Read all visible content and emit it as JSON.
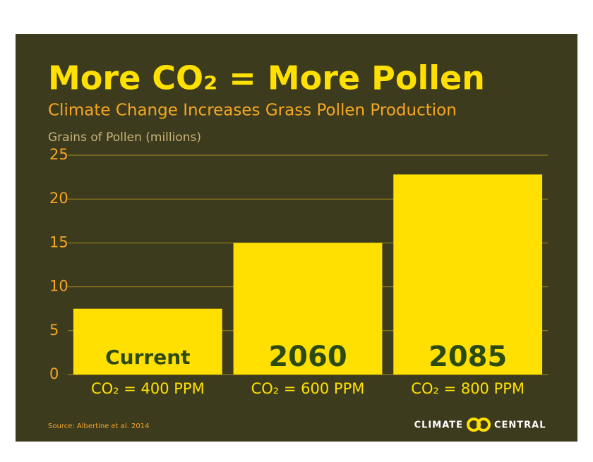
{
  "chart_data": {
    "type": "bar",
    "title": "More CO₂ = More Pollen",
    "subtitle": "Climate Change Increases Grass Pollen Production",
    "y_label": "Grains of Pollen (millions)",
    "categories": [
      "Current",
      "2060",
      "2085"
    ],
    "category_notes": [
      "CO₂ = 400 PPM",
      "CO₂ = 600 PPM",
      "CO₂ = 800 PPM"
    ],
    "values": [
      7.5,
      15,
      22.8
    ],
    "color": "#ffe000",
    "ylim": [
      0,
      25
    ],
    "yticks": [
      0,
      5,
      10,
      15,
      20,
      25
    ],
    "grid": true,
    "source": "Source: Albertine et al. 2014",
    "logo": [
      "CLIMATE",
      "CENTRAL"
    ]
  }
}
